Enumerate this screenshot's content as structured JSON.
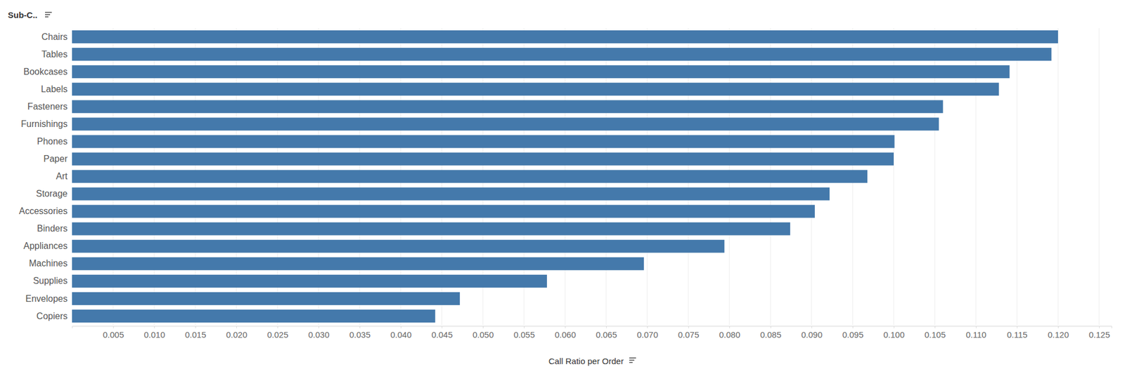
{
  "chart_data": {
    "type": "bar",
    "orientation": "horizontal",
    "ylabel": "Sub-C..",
    "xlabel": "Call Ratio per Order",
    "categories": [
      "Chairs",
      "Tables",
      "Bookcases",
      "Labels",
      "Fasteners",
      "Furnishings",
      "Phones",
      "Paper",
      "Art",
      "Storage",
      "Accessories",
      "Binders",
      "Appliances",
      "Machines",
      "Supplies",
      "Envelopes",
      "Copiers"
    ],
    "values": [
      0.12,
      0.1192,
      0.1141,
      0.1128,
      0.106,
      0.1055,
      0.1001,
      0.1,
      0.0968,
      0.0922,
      0.0904,
      0.0874,
      0.0794,
      0.0696,
      0.0578,
      0.0472,
      0.0442
    ],
    "color": "#4479ab",
    "xlim": [
      0,
      0.1265
    ],
    "xticks": [
      0.005,
      {
        "value": 0.01,
        "label": "0.010"
      },
      0.015,
      {
        "value": 0.02,
        "label": "0.020"
      },
      0.025,
      {
        "value": 0.03,
        "label": "0.030"
      },
      0.035,
      {
        "value": 0.04,
        "label": "0.040"
      },
      0.045,
      {
        "value": 0.05,
        "label": "0.050"
      },
      0.055,
      {
        "value": 0.06,
        "label": "0.060"
      },
      0.065,
      {
        "value": 0.07,
        "label": "0.070"
      },
      0.075,
      {
        "value": 0.08,
        "label": "0.080"
      },
      0.085,
      {
        "value": 0.09,
        "label": "0.090"
      },
      0.095,
      {
        "value": 0.1,
        "label": "0.100"
      },
      0.105,
      {
        "value": 0.11,
        "label": "0.110"
      },
      0.115,
      {
        "value": 0.12,
        "label": "0.120"
      },
      0.125
    ],
    "grid": true
  }
}
